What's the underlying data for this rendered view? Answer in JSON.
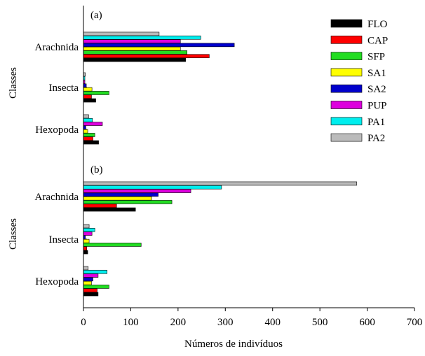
{
  "chart_data": [
    {
      "type": "bar",
      "orientation": "horizontal",
      "panel_label": "(a)",
      "categories": [
        "Arachnida",
        "Insecta",
        "Hexopoda"
      ],
      "ylabel": "Classes",
      "xlim": [
        0,
        700
      ],
      "legend_position": "top-right",
      "series": [
        {
          "name": "FLO",
          "color": "#000000",
          "values": [
            216,
            26,
            32
          ]
        },
        {
          "name": "CAP",
          "color": "#ff0000",
          "values": [
            266,
            17,
            20
          ]
        },
        {
          "name": "SFP",
          "color": "#22dd22",
          "values": [
            219,
            54,
            24
          ]
        },
        {
          "name": "SA1",
          "color": "#ffff00",
          "values": [
            205,
            18,
            9
          ]
        },
        {
          "name": "SA2",
          "color": "#0000cc",
          "values": [
            319,
            6,
            5
          ]
        },
        {
          "name": "PUP",
          "color": "#dd00dd",
          "values": [
            205,
            3,
            40
          ]
        },
        {
          "name": "PA1",
          "color": "#00eeee",
          "values": [
            248,
            3,
            19
          ]
        },
        {
          "name": "PA2",
          "color": "#bbbbbb",
          "values": [
            160,
            4,
            11
          ]
        }
      ]
    },
    {
      "type": "bar",
      "orientation": "horizontal",
      "panel_label": "(b)",
      "categories": [
        "Arachnida",
        "Insecta",
        "Hexopoda"
      ],
      "ylabel": "Classes",
      "xlabel": "Números de indivíduos",
      "xlim": [
        0,
        700
      ],
      "xticks": [
        0,
        100,
        200,
        300,
        400,
        500,
        600,
        700
      ],
      "series": [
        {
          "name": "FLO",
          "color": "#000000",
          "values": [
            110,
            9,
            31
          ]
        },
        {
          "name": "CAP",
          "color": "#ff0000",
          "values": [
            70,
            7,
            29
          ]
        },
        {
          "name": "SFP",
          "color": "#22dd22",
          "values": [
            187,
            122,
            54
          ]
        },
        {
          "name": "SA1",
          "color": "#ffff00",
          "values": [
            144,
            12,
            17
          ]
        },
        {
          "name": "SA2",
          "color": "#0000cc",
          "values": [
            158,
            4,
            20
          ]
        },
        {
          "name": "PUP",
          "color": "#dd00dd",
          "values": [
            227,
            18,
            31
          ]
        },
        {
          "name": "PA1",
          "color": "#00eeee",
          "values": [
            292,
            24,
            50
          ]
        },
        {
          "name": "PA2",
          "color": "#bbbbbb",
          "values": [
            578,
            12,
            10
          ]
        }
      ]
    }
  ]
}
